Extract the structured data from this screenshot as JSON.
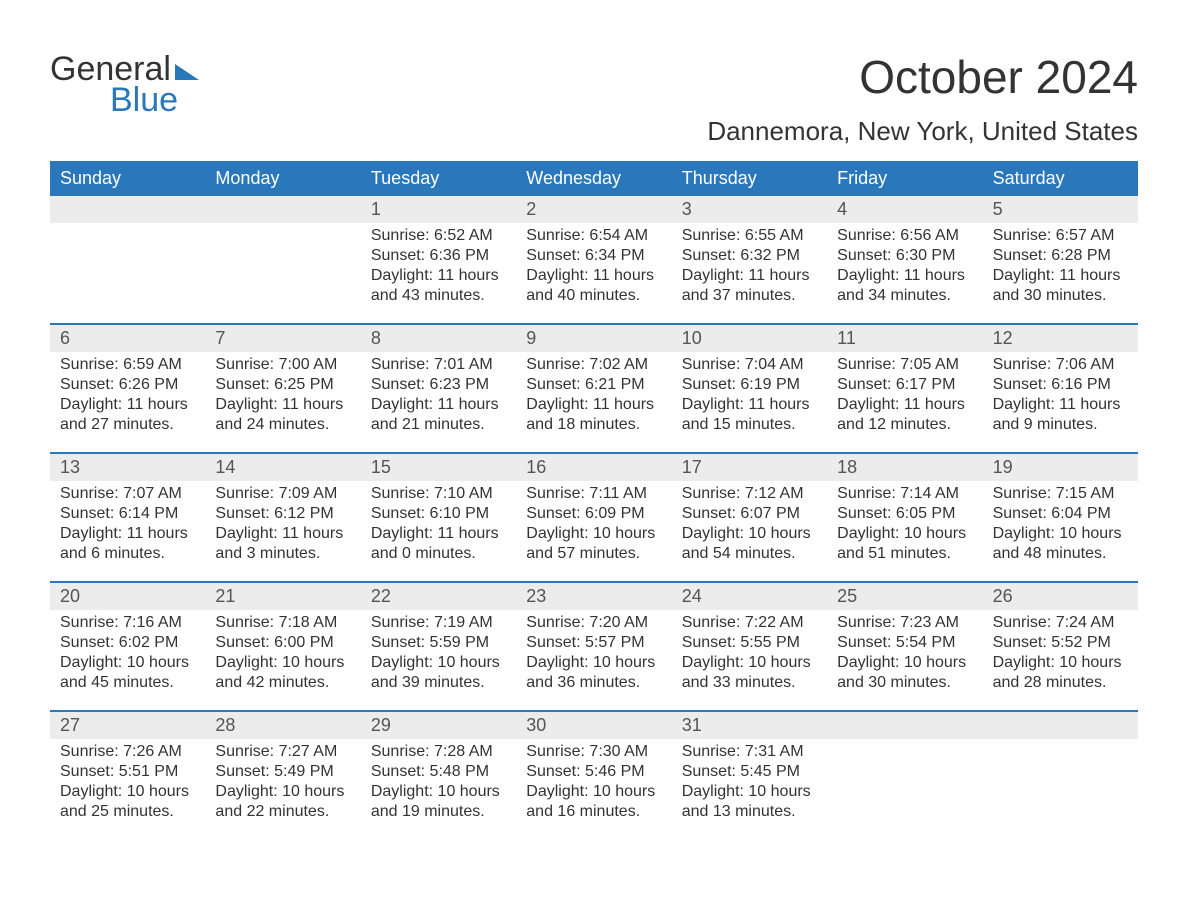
{
  "logo": {
    "general": "General",
    "blue": "Blue"
  },
  "title": "October 2024",
  "location": "Dannemora, New York, United States",
  "colors": {
    "accent": "#2a77bb",
    "header_bg": "#2a77bb",
    "header_text": "#ffffff",
    "daynum_bg": "#ececec",
    "body_text": "#333333",
    "muted_text": "#555555",
    "background": "#ffffff"
  },
  "typography": {
    "title_fontsize": 46,
    "location_fontsize": 26,
    "dayheader_fontsize": 18,
    "daynum_fontsize": 18,
    "cell_fontsize": 16,
    "logo_fontsize": 34
  },
  "calendar": {
    "type": "table",
    "columns": [
      "Sunday",
      "Monday",
      "Tuesday",
      "Wednesday",
      "Thursday",
      "Friday",
      "Saturday"
    ],
    "weeks": [
      {
        "nums": [
          "",
          "",
          "1",
          "2",
          "3",
          "4",
          "5"
        ],
        "cells": [
          "",
          "",
          "Sunrise: 6:52 AM\nSunset: 6:36 PM\nDaylight: 11 hours and 43 minutes.",
          "Sunrise: 6:54 AM\nSunset: 6:34 PM\nDaylight: 11 hours and 40 minutes.",
          "Sunrise: 6:55 AM\nSunset: 6:32 PM\nDaylight: 11 hours and 37 minutes.",
          "Sunrise: 6:56 AM\nSunset: 6:30 PM\nDaylight: 11 hours and 34 minutes.",
          "Sunrise: 6:57 AM\nSunset: 6:28 PM\nDaylight: 11 hours and 30 minutes."
        ]
      },
      {
        "nums": [
          "6",
          "7",
          "8",
          "9",
          "10",
          "11",
          "12"
        ],
        "cells": [
          "Sunrise: 6:59 AM\nSunset: 6:26 PM\nDaylight: 11 hours and 27 minutes.",
          "Sunrise: 7:00 AM\nSunset: 6:25 PM\nDaylight: 11 hours and 24 minutes.",
          "Sunrise: 7:01 AM\nSunset: 6:23 PM\nDaylight: 11 hours and 21 minutes.",
          "Sunrise: 7:02 AM\nSunset: 6:21 PM\nDaylight: 11 hours and 18 minutes.",
          "Sunrise: 7:04 AM\nSunset: 6:19 PM\nDaylight: 11 hours and 15 minutes.",
          "Sunrise: 7:05 AM\nSunset: 6:17 PM\nDaylight: 11 hours and 12 minutes.",
          "Sunrise: 7:06 AM\nSunset: 6:16 PM\nDaylight: 11 hours and 9 minutes."
        ]
      },
      {
        "nums": [
          "13",
          "14",
          "15",
          "16",
          "17",
          "18",
          "19"
        ],
        "cells": [
          "Sunrise: 7:07 AM\nSunset: 6:14 PM\nDaylight: 11 hours and 6 minutes.",
          "Sunrise: 7:09 AM\nSunset: 6:12 PM\nDaylight: 11 hours and 3 minutes.",
          "Sunrise: 7:10 AM\nSunset: 6:10 PM\nDaylight: 11 hours and 0 minutes.",
          "Sunrise: 7:11 AM\nSunset: 6:09 PM\nDaylight: 10 hours and 57 minutes.",
          "Sunrise: 7:12 AM\nSunset: 6:07 PM\nDaylight: 10 hours and 54 minutes.",
          "Sunrise: 7:14 AM\nSunset: 6:05 PM\nDaylight: 10 hours and 51 minutes.",
          "Sunrise: 7:15 AM\nSunset: 6:04 PM\nDaylight: 10 hours and 48 minutes."
        ]
      },
      {
        "nums": [
          "20",
          "21",
          "22",
          "23",
          "24",
          "25",
          "26"
        ],
        "cells": [
          "Sunrise: 7:16 AM\nSunset: 6:02 PM\nDaylight: 10 hours and 45 minutes.",
          "Sunrise: 7:18 AM\nSunset: 6:00 PM\nDaylight: 10 hours and 42 minutes.",
          "Sunrise: 7:19 AM\nSunset: 5:59 PM\nDaylight: 10 hours and 39 minutes.",
          "Sunrise: 7:20 AM\nSunset: 5:57 PM\nDaylight: 10 hours and 36 minutes.",
          "Sunrise: 7:22 AM\nSunset: 5:55 PM\nDaylight: 10 hours and 33 minutes.",
          "Sunrise: 7:23 AM\nSunset: 5:54 PM\nDaylight: 10 hours and 30 minutes.",
          "Sunrise: 7:24 AM\nSunset: 5:52 PM\nDaylight: 10 hours and 28 minutes."
        ]
      },
      {
        "nums": [
          "27",
          "28",
          "29",
          "30",
          "31",
          "",
          ""
        ],
        "cells": [
          "Sunrise: 7:26 AM\nSunset: 5:51 PM\nDaylight: 10 hours and 25 minutes.",
          "Sunrise: 7:27 AM\nSunset: 5:49 PM\nDaylight: 10 hours and 22 minutes.",
          "Sunrise: 7:28 AM\nSunset: 5:48 PM\nDaylight: 10 hours and 19 minutes.",
          "Sunrise: 7:30 AM\nSunset: 5:46 PM\nDaylight: 10 hours and 16 minutes.",
          "Sunrise: 7:31 AM\nSunset: 5:45 PM\nDaylight: 10 hours and 13 minutes.",
          "",
          ""
        ]
      }
    ]
  }
}
